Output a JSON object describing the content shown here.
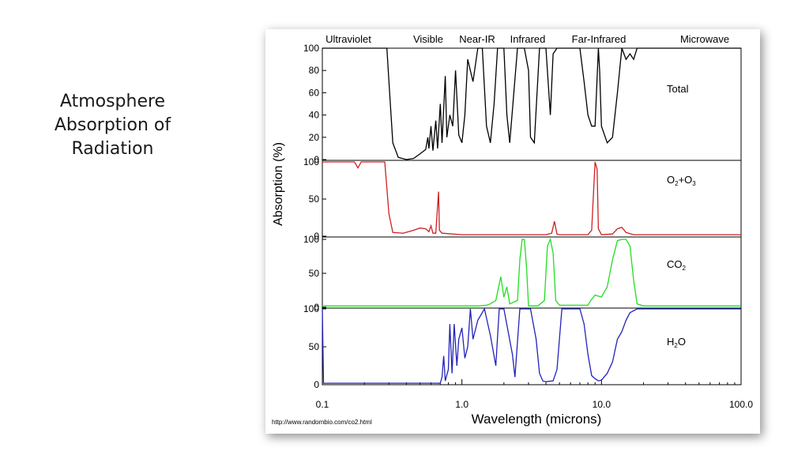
{
  "slide": {
    "title_lines": [
      "Atmosphere",
      "Absorption of",
      "Radiation"
    ]
  },
  "chart_data": {
    "type": "line",
    "x_scale": "log",
    "xlim": [
      0.1,
      100.0
    ],
    "xlabel": "Wavelength (microns)",
    "ylabel": "Absorption (%)",
    "x_ticks": [
      "0.1",
      "1.0",
      "10.0",
      "100.0"
    ],
    "x_tick_values": [
      0.1,
      1.0,
      10.0,
      100.0
    ],
    "bands": [
      "Ultraviolet",
      "Visible",
      "Near-IR",
      "Infrared",
      "Far-Infrared",
      "Microwave"
    ],
    "source_note": "http://www.randombio.com/co2.html",
    "colors": {
      "Total": "#000000",
      "O2+O3": "#cc2222",
      "CO2": "#22dd22",
      "H2O": "#2222bb"
    },
    "panels": [
      {
        "name": "Total",
        "label": {
          "main": "Total",
          "sub": ""
        },
        "color": "#000000",
        "ylim": [
          0,
          100
        ],
        "y_ticks": [
          "100",
          "80",
          "60",
          "40",
          "20",
          "0"
        ],
        "y_tick_values": [
          100,
          80,
          60,
          40,
          20,
          0
        ],
        "points": [
          [
            0.1,
            100
          ],
          [
            0.29,
            100
          ],
          [
            0.3,
            70
          ],
          [
            0.32,
            15
          ],
          [
            0.35,
            2
          ],
          [
            0.4,
            0
          ],
          [
            0.45,
            1
          ],
          [
            0.5,
            5
          ],
          [
            0.55,
            9
          ],
          [
            0.57,
            20
          ],
          [
            0.58,
            10
          ],
          [
            0.6,
            30
          ],
          [
            0.62,
            8
          ],
          [
            0.65,
            35
          ],
          [
            0.67,
            10
          ],
          [
            0.7,
            50
          ],
          [
            0.72,
            15
          ],
          [
            0.76,
            75
          ],
          [
            0.78,
            20
          ],
          [
            0.82,
            40
          ],
          [
            0.86,
            30
          ],
          [
            0.9,
            80
          ],
          [
            0.95,
            22
          ],
          [
            1.0,
            15
          ],
          [
            1.05,
            40
          ],
          [
            1.1,
            90
          ],
          [
            1.2,
            70
          ],
          [
            1.3,
            100
          ],
          [
            1.4,
            100
          ],
          [
            1.5,
            30
          ],
          [
            1.6,
            15
          ],
          [
            1.7,
            50
          ],
          [
            1.8,
            100
          ],
          [
            2.0,
            100
          ],
          [
            2.1,
            40
          ],
          [
            2.2,
            15
          ],
          [
            2.5,
            100
          ],
          [
            2.8,
            100
          ],
          [
            3.0,
            80
          ],
          [
            3.1,
            20
          ],
          [
            3.3,
            15
          ],
          [
            3.6,
            100
          ],
          [
            4.0,
            100
          ],
          [
            4.3,
            40
          ],
          [
            4.5,
            95
          ],
          [
            4.8,
            100
          ],
          [
            5.5,
            100
          ],
          [
            6.0,
            100
          ],
          [
            7.0,
            100
          ],
          [
            7.5,
            70
          ],
          [
            8.0,
            40
          ],
          [
            8.5,
            30
          ],
          [
            9.0,
            30
          ],
          [
            9.5,
            100
          ],
          [
            9.7,
            80
          ],
          [
            10.0,
            30
          ],
          [
            11.0,
            15
          ],
          [
            12.0,
            20
          ],
          [
            13.0,
            60
          ],
          [
            14.0,
            100
          ],
          [
            15.0,
            90
          ],
          [
            16.0,
            95
          ],
          [
            17.0,
            90
          ],
          [
            18.0,
            100
          ],
          [
            20.0,
            100
          ],
          [
            30.0,
            100
          ],
          [
            100.0,
            100
          ]
        ]
      },
      {
        "name": "O2+O3",
        "label": {
          "main": "O",
          "sub": "2",
          "main2": "+O",
          "sub2": "3"
        },
        "color": "#cc2222",
        "ylim": [
          0,
          100
        ],
        "y_ticks": [
          "100",
          "50",
          "0"
        ],
        "y_tick_values": [
          100,
          50,
          0
        ],
        "points": [
          [
            0.1,
            100
          ],
          [
            0.17,
            100
          ],
          [
            0.18,
            92
          ],
          [
            0.19,
            100
          ],
          [
            0.28,
            100
          ],
          [
            0.3,
            30
          ],
          [
            0.32,
            5
          ],
          [
            0.38,
            4
          ],
          [
            0.45,
            8
          ],
          [
            0.5,
            11
          ],
          [
            0.55,
            10
          ],
          [
            0.58,
            6
          ],
          [
            0.6,
            14
          ],
          [
            0.62,
            4
          ],
          [
            0.65,
            4
          ],
          [
            0.68,
            60
          ],
          [
            0.69,
            8
          ],
          [
            0.72,
            4
          ],
          [
            1.0,
            2
          ],
          [
            4.0,
            2
          ],
          [
            4.4,
            4
          ],
          [
            4.6,
            20
          ],
          [
            4.8,
            3
          ],
          [
            5.0,
            2
          ],
          [
            8.0,
            2
          ],
          [
            8.5,
            8
          ],
          [
            9.0,
            100
          ],
          [
            9.3,
            90
          ],
          [
            9.5,
            10
          ],
          [
            10.0,
            2
          ],
          [
            12.0,
            3
          ],
          [
            13.0,
            10
          ],
          [
            14.0,
            12
          ],
          [
            15.0,
            5
          ],
          [
            17.0,
            2
          ],
          [
            100.0,
            2
          ]
        ]
      },
      {
        "name": "CO2",
        "label": {
          "main": "CO",
          "sub": "2"
        },
        "color": "#22dd22",
        "ylim": [
          0,
          100
        ],
        "y_ticks": [
          "100",
          "50",
          "0"
        ],
        "y_tick_values": [
          100,
          50,
          0
        ],
        "points": [
          [
            0.1,
            2
          ],
          [
            1.3,
            2
          ],
          [
            1.5,
            3
          ],
          [
            1.6,
            5
          ],
          [
            1.75,
            10
          ],
          [
            1.9,
            45
          ],
          [
            2.0,
            15
          ],
          [
            2.1,
            30
          ],
          [
            2.2,
            5
          ],
          [
            2.5,
            10
          ],
          [
            2.6,
            70
          ],
          [
            2.7,
            100
          ],
          [
            2.8,
            100
          ],
          [
            2.9,
            60
          ],
          [
            3.0,
            2
          ],
          [
            3.5,
            2
          ],
          [
            3.9,
            10
          ],
          [
            4.1,
            90
          ],
          [
            4.3,
            100
          ],
          [
            4.5,
            80
          ],
          [
            4.7,
            10
          ],
          [
            5.0,
            3
          ],
          [
            8.0,
            3
          ],
          [
            8.5,
            12
          ],
          [
            9.0,
            18
          ],
          [
            10.0,
            15
          ],
          [
            11.0,
            30
          ],
          [
            12.0,
            70
          ],
          [
            13.0,
            98
          ],
          [
            14.0,
            100
          ],
          [
            15.0,
            100
          ],
          [
            16.0,
            90
          ],
          [
            17.0,
            40
          ],
          [
            18.0,
            5
          ],
          [
            20.0,
            2
          ],
          [
            100.0,
            2
          ]
        ]
      },
      {
        "name": "H2O",
        "label": {
          "main": "H",
          "sub": "2",
          "main2": "O"
        },
        "color": "#2222bb",
        "ylim": [
          0,
          100
        ],
        "y_ticks": [
          "100",
          "50",
          "0"
        ],
        "y_tick_values": [
          100,
          50,
          0
        ],
        "points": [
          [
            0.1,
            100
          ],
          [
            0.102,
            2
          ],
          [
            0.7,
            2
          ],
          [
            0.72,
            10
          ],
          [
            0.74,
            38
          ],
          [
            0.76,
            5
          ],
          [
            0.8,
            20
          ],
          [
            0.82,
            80
          ],
          [
            0.85,
            15
          ],
          [
            0.88,
            80
          ],
          [
            0.92,
            25
          ],
          [
            0.95,
            60
          ],
          [
            1.0,
            75
          ],
          [
            1.05,
            35
          ],
          [
            1.1,
            50
          ],
          [
            1.15,
            100
          ],
          [
            1.2,
            60
          ],
          [
            1.3,
            85
          ],
          [
            1.45,
            100
          ],
          [
            1.6,
            65
          ],
          [
            1.75,
            25
          ],
          [
            1.85,
            100
          ],
          [
            2.0,
            100
          ],
          [
            2.3,
            40
          ],
          [
            2.4,
            10
          ],
          [
            2.6,
            100
          ],
          [
            3.1,
            100
          ],
          [
            3.4,
            60
          ],
          [
            3.6,
            15
          ],
          [
            3.8,
            5
          ],
          [
            4.0,
            4
          ],
          [
            4.5,
            5
          ],
          [
            4.8,
            20
          ],
          [
            5.2,
            100
          ],
          [
            7.0,
            100
          ],
          [
            7.5,
            80
          ],
          [
            8.0,
            40
          ],
          [
            8.5,
            12
          ],
          [
            9.0,
            8
          ],
          [
            9.5,
            5
          ],
          [
            10.0,
            6
          ],
          [
            11.0,
            15
          ],
          [
            12.0,
            30
          ],
          [
            13.0,
            60
          ],
          [
            14.0,
            70
          ],
          [
            15.0,
            85
          ],
          [
            16.0,
            95
          ],
          [
            18.0,
            100
          ],
          [
            20.0,
            100
          ],
          [
            100.0,
            100
          ]
        ]
      }
    ]
  }
}
